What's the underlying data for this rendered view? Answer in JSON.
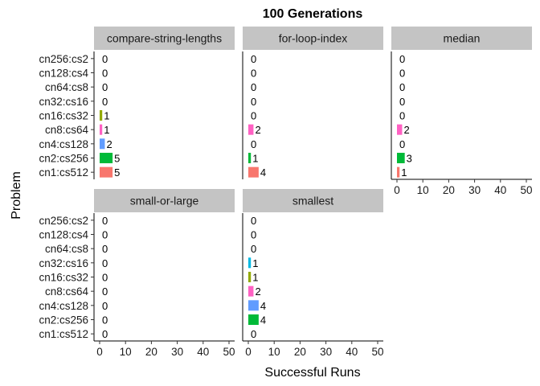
{
  "chart_data": {
    "type": "bar",
    "orientation": "horizontal",
    "title": "100 Generations",
    "xlabel": "Successful Runs",
    "ylabel": "Problem",
    "xlim": [
      0,
      50
    ],
    "x_ticks": [
      0,
      10,
      20,
      30,
      40,
      50
    ],
    "categories": [
      "cn256:cs2",
      "cn128:cs4",
      "cn64:cs8",
      "cn32:cs16",
      "cn16:cs32",
      "cn8:cs64",
      "cn4:cs128",
      "cn2:cs256",
      "cn1:cs512"
    ],
    "colors": {
      "cn256:cs2": "#FF61C3",
      "cn128:cs4": "#DB72FB",
      "cn64:cs8": "#619CFF",
      "cn32:cs16": "#00B9E3",
      "cn16:cs32": "#93AA00",
      "cn8:cs64": "#FF61C3",
      "cn4:cs128": "#619CFF",
      "cn2:cs256": "#00BA38",
      "cn1:cs512": "#F8766D"
    },
    "grid": false,
    "legend": "none",
    "panels": [
      {
        "name": "compare-string-lengths",
        "values": [
          0,
          0,
          0,
          0,
          1,
          1,
          2,
          5,
          5
        ]
      },
      {
        "name": "for-loop-index",
        "values": [
          0,
          0,
          0,
          0,
          0,
          2,
          0,
          1,
          4
        ]
      },
      {
        "name": "median",
        "values": [
          0,
          0,
          0,
          0,
          0,
          2,
          0,
          3,
          1
        ]
      },
      {
        "name": "small-or-large",
        "values": [
          0,
          0,
          0,
          0,
          0,
          0,
          0,
          0,
          0
        ]
      },
      {
        "name": "smallest",
        "values": [
          0,
          0,
          0,
          1,
          1,
          2,
          4,
          4,
          0
        ]
      }
    ]
  }
}
